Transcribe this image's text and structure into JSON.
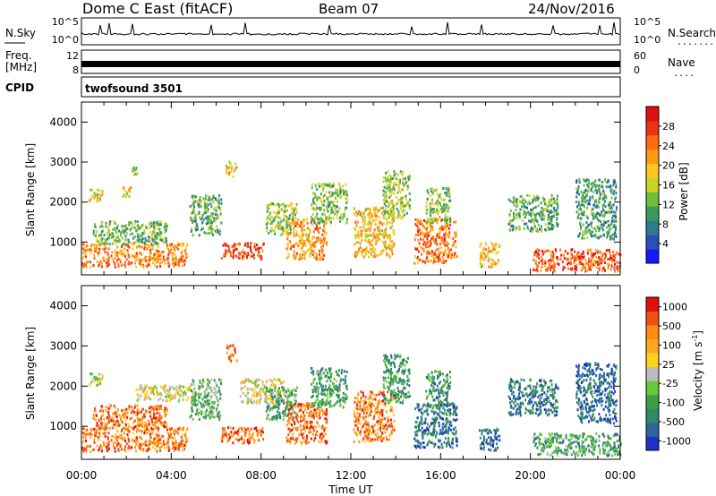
{
  "header": {
    "station": "Dome C East (fitACF)",
    "beam": "Beam 07",
    "date": "24/Nov/2016"
  },
  "left_labels": {
    "nsky": "N.Sky",
    "freq_line1": "Freq.",
    "freq_line2": "[MHz]",
    "cpid": "CPID"
  },
  "right_labels": {
    "nsearch": "N.Search",
    "nsearch_dots": "........",
    "nave": "Nave",
    "nave_dots": "...."
  },
  "cpid_value": "twofsound 3501",
  "noise_panel": {
    "left_ticks": [
      "10^5",
      "10^0"
    ],
    "right_ticks": [
      "10^5",
      "10^0"
    ]
  },
  "freq_panel": {
    "left_ticks": [
      "12",
      "8"
    ],
    "right_ticks": [
      "60",
      "0"
    ]
  },
  "chart_data": [
    {
      "type": "heatmap",
      "title": "Power",
      "xlabel": "Time UT",
      "ylabel": "Slant Range [km]",
      "x_ticks": [
        "00:00",
        "04:00",
        "08:00",
        "12:00",
        "16:00",
        "20:00",
        "00:00"
      ],
      "y_ticks": [
        "1000",
        "2000",
        "3000",
        "4000"
      ],
      "xlim": [
        0,
        24
      ],
      "ylim": [
        180,
        4500
      ],
      "colorbar": {
        "label": "Power [dB]",
        "ticks": [
          "4",
          "8",
          "12",
          "16",
          "20",
          "24",
          "28"
        ],
        "colors": [
          "#1919ff",
          "#2a4fb8",
          "#2f7a8c",
          "#3a9a5e",
          "#6bbf3a",
          "#c8d42a",
          "#ffc81e",
          "#ff9a14",
          "#ff6a14",
          "#f03214",
          "#e10f0f"
        ]
      },
      "grid": true,
      "blobs": [
        {
          "t0": 0.0,
          "t1": 4.7,
          "r0": 400,
          "r1": 1000,
          "level": 0.72
        },
        {
          "t0": 0.3,
          "t1": 1.0,
          "r0": 2050,
          "r1": 2350,
          "level": 0.55
        },
        {
          "t0": 0.5,
          "t1": 3.8,
          "r0": 950,
          "r1": 1550,
          "level": 0.38
        },
        {
          "t0": 1.8,
          "t1": 2.2,
          "r0": 2150,
          "r1": 2450,
          "level": 0.6
        },
        {
          "t0": 2.1,
          "t1": 2.5,
          "r0": 2700,
          "r1": 2900,
          "level": 0.45
        },
        {
          "t0": 4.8,
          "t1": 6.2,
          "r0": 1200,
          "r1": 2200,
          "level": 0.35
        },
        {
          "t0": 6.4,
          "t1": 6.9,
          "r0": 2650,
          "r1": 3050,
          "level": 0.6
        },
        {
          "t0": 6.2,
          "t1": 8.1,
          "r0": 600,
          "r1": 1000,
          "level": 0.85
        },
        {
          "t0": 8.2,
          "t1": 9.6,
          "r0": 1200,
          "r1": 2000,
          "level": 0.45
        },
        {
          "t0": 9.1,
          "t1": 10.9,
          "r0": 600,
          "r1": 1600,
          "level": 0.68
        },
        {
          "t0": 10.2,
          "t1": 11.8,
          "r0": 1500,
          "r1": 2500,
          "level": 0.4
        },
        {
          "t0": 12.1,
          "t1": 13.9,
          "r0": 650,
          "r1": 1900,
          "level": 0.6
        },
        {
          "t0": 13.4,
          "t1": 14.6,
          "r0": 1600,
          "r1": 2800,
          "level": 0.45
        },
        {
          "t0": 14.8,
          "t1": 16.7,
          "r0": 500,
          "r1": 1600,
          "level": 0.75
        },
        {
          "t0": 15.3,
          "t1": 16.4,
          "r0": 1500,
          "r1": 2400,
          "level": 0.45
        },
        {
          "t0": 17.7,
          "t1": 18.6,
          "r0": 400,
          "r1": 1000,
          "level": 0.6
        },
        {
          "t0": 19.0,
          "t1": 21.2,
          "r0": 1300,
          "r1": 2200,
          "level": 0.35
        },
        {
          "t0": 20.1,
          "t1": 24.0,
          "r0": 300,
          "r1": 850,
          "level": 0.82
        },
        {
          "t0": 22.0,
          "t1": 23.8,
          "r0": 1100,
          "r1": 2600,
          "level": 0.3
        }
      ]
    },
    {
      "type": "heatmap",
      "title": "Velocity",
      "xlabel": "Time UT",
      "ylabel": "Slant Range [km]",
      "x_ticks": [
        "00:00",
        "04:00",
        "08:00",
        "12:00",
        "16:00",
        "20:00",
        "00:00"
      ],
      "y_ticks": [
        "1000",
        "2000",
        "3000",
        "4000"
      ],
      "xlim": [
        0,
        24
      ],
      "ylim": [
        180,
        4500
      ],
      "colorbar": {
        "label": "Velocity [m s^-1]",
        "ticks": [
          "1000",
          "500",
          "100",
          "25",
          "-25",
          "-100",
          "-500",
          "-1000"
        ],
        "colors": [
          "#1e32c8",
          "#2c64a0",
          "#2f8a6a",
          "#3aa043",
          "#68c83a",
          "#bcbcbc",
          "#ffd21e",
          "#ffaa1e",
          "#ff8c14",
          "#f05014",
          "#e10f0f"
        ]
      },
      "grid": true,
      "blobs": [
        {
          "t0": 0.0,
          "t1": 4.7,
          "r0": 400,
          "r1": 1000,
          "level": 0.78
        },
        {
          "t0": 0.3,
          "t1": 1.0,
          "r0": 2050,
          "r1": 2350,
          "level": 0.45
        },
        {
          "t0": 0.5,
          "t1": 3.8,
          "r0": 950,
          "r1": 1550,
          "level": 0.8
        },
        {
          "t0": 2.4,
          "t1": 5.0,
          "r0": 1650,
          "r1": 2050,
          "level": 0.55
        },
        {
          "t0": 4.8,
          "t1": 6.2,
          "r0": 1200,
          "r1": 2200,
          "level": 0.35
        },
        {
          "t0": 6.4,
          "t1": 6.9,
          "r0": 2650,
          "r1": 3050,
          "level": 0.78
        },
        {
          "t0": 6.2,
          "t1": 8.1,
          "r0": 600,
          "r1": 1000,
          "level": 0.82
        },
        {
          "t0": 7.0,
          "t1": 9.0,
          "r0": 1600,
          "r1": 2200,
          "level": 0.55
        },
        {
          "t0": 8.2,
          "t1": 9.6,
          "r0": 1200,
          "r1": 2000,
          "level": 0.3
        },
        {
          "t0": 9.1,
          "t1": 10.9,
          "r0": 600,
          "r1": 1600,
          "level": 0.8
        },
        {
          "t0": 10.2,
          "t1": 11.8,
          "r0": 1500,
          "r1": 2500,
          "level": 0.3
        },
        {
          "t0": 12.1,
          "t1": 13.9,
          "r0": 650,
          "r1": 1900,
          "level": 0.78
        },
        {
          "t0": 13.4,
          "t1": 14.6,
          "r0": 1600,
          "r1": 2800,
          "level": 0.28
        },
        {
          "t0": 14.8,
          "t1": 16.7,
          "r0": 500,
          "r1": 1600,
          "level": 0.2
        },
        {
          "t0": 15.3,
          "t1": 16.4,
          "r0": 1500,
          "r1": 2400,
          "level": 0.25
        },
        {
          "t0": 17.7,
          "t1": 18.6,
          "r0": 400,
          "r1": 1000,
          "level": 0.2
        },
        {
          "t0": 19.0,
          "t1": 21.2,
          "r0": 1300,
          "r1": 2200,
          "level": 0.2
        },
        {
          "t0": 20.1,
          "t1": 24.0,
          "r0": 300,
          "r1": 850,
          "level": 0.3
        },
        {
          "t0": 22.0,
          "t1": 23.8,
          "r0": 1100,
          "r1": 2600,
          "level": 0.15
        }
      ]
    }
  ]
}
